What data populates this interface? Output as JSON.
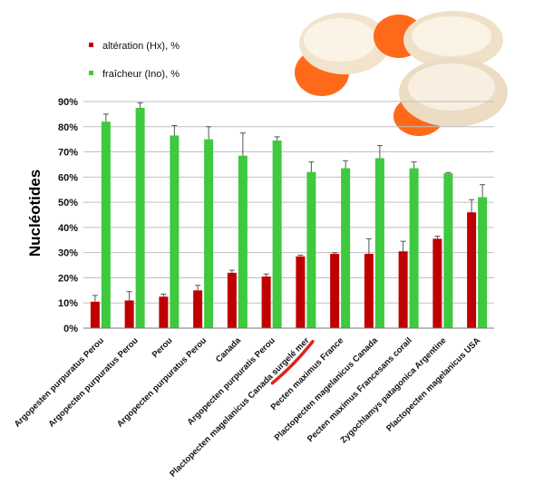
{
  "chart_data": {
    "type": "bar",
    "ylabel": "Nucléotides",
    "ylim": [
      0,
      90
    ],
    "ytick_labels": [
      "0%",
      "10%",
      "20%",
      "30%",
      "40%",
      "50%",
      "60%",
      "70%",
      "80%",
      "90%"
    ],
    "grid": "horizontal",
    "legend_position": "top-left",
    "categories": [
      "Argopesten purpuratus Perou",
      "Argopecten purpuratus Perou",
      "Perou",
      "Argopecten purpuratus Perou",
      "Canada",
      "Argopecten purpuratis Perou",
      "Plactopecten magelanicus Canada surgelé mer",
      "Pecten maximus France",
      "Plactopecten magelanicus  Canada",
      "Pecten maximus Francesans corail",
      "Zygochlamys patagonica Argentine",
      "Plactopecten magelanicus  USA"
    ],
    "series": [
      {
        "name": "altération (Hx), %",
        "color": "#c00000",
        "values": [
          10.5,
          11,
          12.5,
          15,
          22,
          20.5,
          28.5,
          29.5,
          29.5,
          30.5,
          35.5,
          46
        ],
        "errors": [
          2.5,
          3.5,
          1,
          2,
          1,
          1,
          0.5,
          0.5,
          6,
          4,
          1,
          5
        ]
      },
      {
        "name": "fraîcheur (Ino),  %",
        "color": "#3ec93e",
        "values": [
          82,
          87.5,
          76.5,
          75,
          68.5,
          74.5,
          62,
          63.5,
          67.5,
          63.5,
          61.5,
          52
        ],
        "errors": [
          3,
          2,
          4,
          5,
          9,
          1.5,
          4,
          3,
          5,
          2.5,
          0.3,
          5
        ]
      }
    ]
  },
  "decorations": {
    "annotation_underline_color": "#e02020",
    "photo": "scallops-photo"
  }
}
